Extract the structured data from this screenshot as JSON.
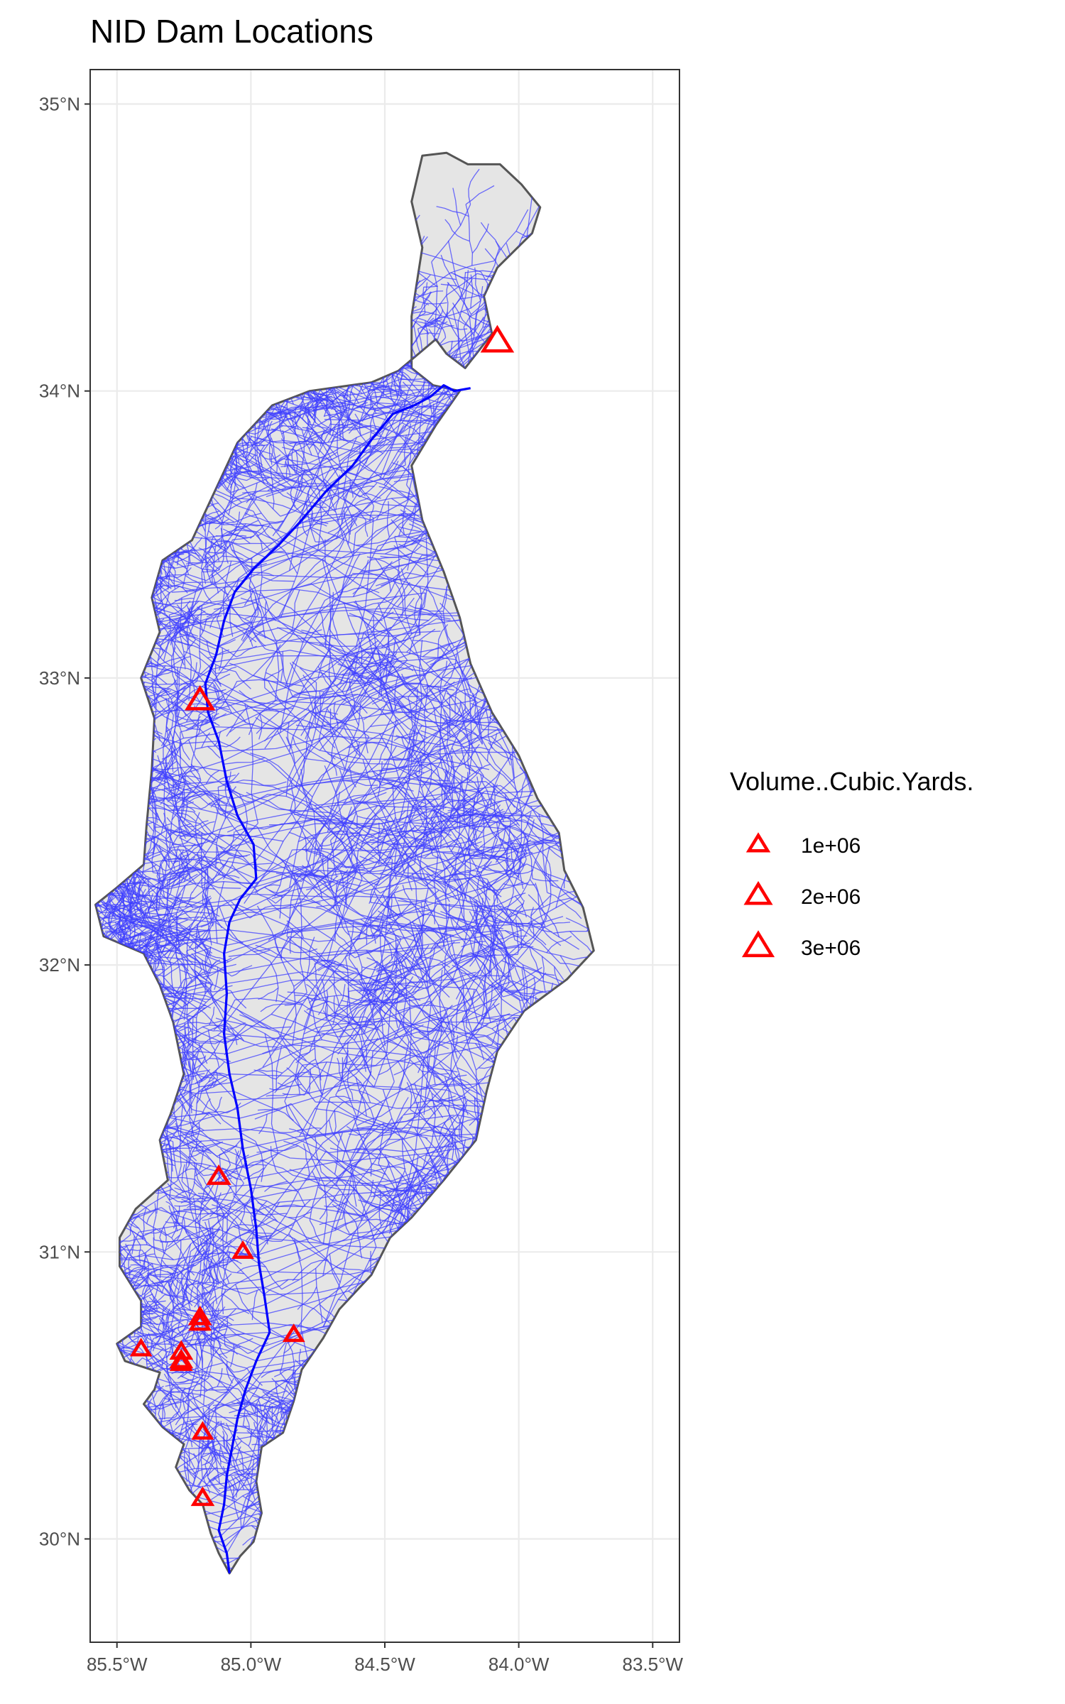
{
  "title": "NID Dam Locations",
  "chart_data": {
    "type": "scatter",
    "title": "NID Dam Locations",
    "xlabel": "",
    "ylabel": "",
    "xlim": [
      -85.6,
      -83.4
    ],
    "ylim": [
      29.64,
      35.12
    ],
    "grid": true,
    "legend_position": "right",
    "x_ticks": [
      {
        "value": -85.5,
        "label": "85.5°W"
      },
      {
        "value": -85.0,
        "label": "85.0°W"
      },
      {
        "value": -84.5,
        "label": "84.5°W"
      },
      {
        "value": -84.0,
        "label": "84.0°W"
      },
      {
        "value": -83.5,
        "label": "83.5°W"
      }
    ],
    "y_ticks": [
      {
        "value": 30,
        "label": "30°N"
      },
      {
        "value": 31,
        "label": "31°N"
      },
      {
        "value": 32,
        "label": "32°N"
      },
      {
        "value": 33,
        "label": "33°N"
      },
      {
        "value": 34,
        "label": "34°N"
      },
      {
        "value": 35,
        "label": "35°N"
      }
    ],
    "legend": {
      "title": "Volume..Cubic.Yards.",
      "entries": [
        {
          "label": "1e+06",
          "volume": 1000000
        },
        {
          "label": "2e+06",
          "volume": 2000000
        },
        {
          "label": "3e+06",
          "volume": 3000000
        }
      ]
    },
    "marker_color": "#ff0000",
    "river_color": "#0000ff",
    "basin_fill": "#e5e5e5",
    "basin_outline_color": "#555555",
    "points": [
      {
        "lon": -84.08,
        "lat": 34.17,
        "volume": 3300000
      },
      {
        "lon": -85.19,
        "lat": 32.92,
        "volume": 2400000
      },
      {
        "lon": -85.12,
        "lat": 31.26,
        "volume": 1100000
      },
      {
        "lon": -85.03,
        "lat": 31.0,
        "volume": 700000
      },
      {
        "lon": -85.19,
        "lat": 30.77,
        "volume": 900000
      },
      {
        "lon": -85.19,
        "lat": 30.75,
        "volume": 800000
      },
      {
        "lon": -84.84,
        "lat": 30.71,
        "volume": 700000
      },
      {
        "lon": -85.41,
        "lat": 30.66,
        "volume": 700000
      },
      {
        "lon": -85.26,
        "lat": 30.65,
        "volume": 900000
      },
      {
        "lon": -85.26,
        "lat": 30.62,
        "volume": 900000
      },
      {
        "lon": -85.26,
        "lat": 30.61,
        "volume": 800000
      },
      {
        "lon": -85.18,
        "lat": 30.37,
        "volume": 700000
      },
      {
        "lon": -85.18,
        "lat": 30.14,
        "volume": 900000
      }
    ],
    "basin_outline": [
      [
        -84.36,
        34.82
      ],
      [
        -84.27,
        34.83
      ],
      [
        -84.19,
        34.79
      ],
      [
        -84.07,
        34.79
      ],
      [
        -83.99,
        34.72
      ],
      [
        -83.92,
        34.64
      ],
      [
        -83.95,
        34.55
      ],
      [
        -84.08,
        34.43
      ],
      [
        -84.13,
        34.33
      ],
      [
        -84.1,
        34.2
      ],
      [
        -84.2,
        34.08
      ],
      [
        -84.27,
        34.13
      ],
      [
        -84.31,
        34.18
      ],
      [
        -84.45,
        34.07
      ],
      [
        -84.55,
        34.03
      ],
      [
        -84.78,
        34.0
      ],
      [
        -84.92,
        33.95
      ],
      [
        -85.05,
        33.82
      ],
      [
        -85.14,
        33.64
      ],
      [
        -85.22,
        33.48
      ],
      [
        -85.33,
        33.41
      ],
      [
        -85.37,
        33.28
      ],
      [
        -85.34,
        33.16
      ],
      [
        -85.41,
        33.0
      ],
      [
        -85.36,
        32.86
      ],
      [
        -85.37,
        32.68
      ],
      [
        -85.39,
        32.48
      ],
      [
        -85.4,
        32.35
      ],
      [
        -85.5,
        32.27
      ],
      [
        -85.58,
        32.21
      ],
      [
        -85.55,
        32.1
      ],
      [
        -85.4,
        32.04
      ],
      [
        -85.34,
        31.93
      ],
      [
        -85.29,
        31.8
      ],
      [
        -85.25,
        31.62
      ],
      [
        -85.3,
        31.48
      ],
      [
        -85.34,
        31.39
      ],
      [
        -85.31,
        31.25
      ],
      [
        -85.43,
        31.15
      ],
      [
        -85.49,
        31.05
      ],
      [
        -85.49,
        30.95
      ],
      [
        -85.41,
        30.83
      ],
      [
        -85.41,
        30.74
      ],
      [
        -85.5,
        30.68
      ],
      [
        -85.47,
        30.62
      ],
      [
        -85.34,
        30.58
      ],
      [
        -85.36,
        30.52
      ],
      [
        -85.4,
        30.47
      ],
      [
        -85.33,
        30.39
      ],
      [
        -85.25,
        30.33
      ],
      [
        -85.28,
        30.25
      ],
      [
        -85.23,
        30.17
      ],
      [
        -85.18,
        30.12
      ],
      [
        -85.15,
        30.02
      ],
      [
        -85.12,
        29.95
      ],
      [
        -85.08,
        29.88
      ],
      [
        -85.04,
        29.94
      ],
      [
        -84.99,
        29.99
      ],
      [
        -84.96,
        30.09
      ],
      [
        -84.98,
        30.2
      ],
      [
        -84.96,
        30.32
      ],
      [
        -84.88,
        30.37
      ],
      [
        -84.84,
        30.48
      ],
      [
        -84.81,
        30.59
      ],
      [
        -84.73,
        30.7
      ],
      [
        -84.67,
        30.8
      ],
      [
        -84.55,
        30.92
      ],
      [
        -84.48,
        31.05
      ],
      [
        -84.4,
        31.12
      ],
      [
        -84.28,
        31.25
      ],
      [
        -84.16,
        31.39
      ],
      [
        -84.12,
        31.56
      ],
      [
        -84.08,
        31.7
      ],
      [
        -83.98,
        31.84
      ],
      [
        -83.82,
        31.95
      ],
      [
        -83.72,
        32.05
      ],
      [
        -83.76,
        32.2
      ],
      [
        -83.83,
        32.33
      ],
      [
        -83.85,
        32.46
      ],
      [
        -83.93,
        32.58
      ],
      [
        -84.0,
        32.73
      ],
      [
        -84.1,
        32.88
      ],
      [
        -84.18,
        33.05
      ],
      [
        -84.22,
        33.21
      ],
      [
        -84.28,
        33.37
      ],
      [
        -84.36,
        33.55
      ],
      [
        -84.4,
        33.74
      ],
      [
        -84.31,
        33.88
      ],
      [
        -84.22,
        34.0
      ],
      [
        -84.32,
        34.02
      ],
      [
        -84.4,
        34.08
      ],
      [
        -84.4,
        34.26
      ],
      [
        -84.36,
        34.5
      ],
      [
        -84.4,
        34.66
      ],
      [
        -84.36,
        34.82
      ]
    ],
    "main_stem": [
      [
        -84.18,
        34.01
      ],
      [
        -84.24,
        34.0
      ],
      [
        -84.28,
        34.02
      ],
      [
        -84.33,
        33.98
      ],
      [
        -84.39,
        33.95
      ],
      [
        -84.47,
        33.92
      ],
      [
        -84.55,
        33.83
      ],
      [
        -84.62,
        33.74
      ],
      [
        -84.72,
        33.65
      ],
      [
        -84.82,
        33.54
      ],
      [
        -84.9,
        33.46
      ],
      [
        -84.99,
        33.38
      ],
      [
        -85.06,
        33.3
      ],
      [
        -85.1,
        33.2
      ],
      [
        -85.13,
        33.08
      ],
      [
        -85.17,
        32.98
      ],
      [
        -85.16,
        32.88
      ],
      [
        -85.12,
        32.78
      ],
      [
        -85.09,
        32.64
      ],
      [
        -85.05,
        32.52
      ],
      [
        -84.99,
        32.42
      ],
      [
        -84.98,
        32.3
      ],
      [
        -85.04,
        32.23
      ],
      [
        -85.08,
        32.15
      ],
      [
        -85.1,
        32.04
      ],
      [
        -85.09,
        31.9
      ],
      [
        -85.1,
        31.76
      ],
      [
        -85.08,
        31.62
      ],
      [
        -85.05,
        31.5
      ],
      [
        -85.03,
        31.36
      ],
      [
        -85.0,
        31.22
      ],
      [
        -84.98,
        31.08
      ],
      [
        -84.97,
        30.96
      ],
      [
        -84.95,
        30.85
      ],
      [
        -84.93,
        30.72
      ],
      [
        -84.98,
        30.62
      ],
      [
        -85.02,
        30.52
      ],
      [
        -85.05,
        30.42
      ],
      [
        -85.07,
        30.32
      ],
      [
        -85.09,
        30.22
      ],
      [
        -85.1,
        30.12
      ],
      [
        -85.12,
        30.03
      ],
      [
        -85.09,
        29.95
      ],
      [
        -85.08,
        29.88
      ]
    ]
  }
}
